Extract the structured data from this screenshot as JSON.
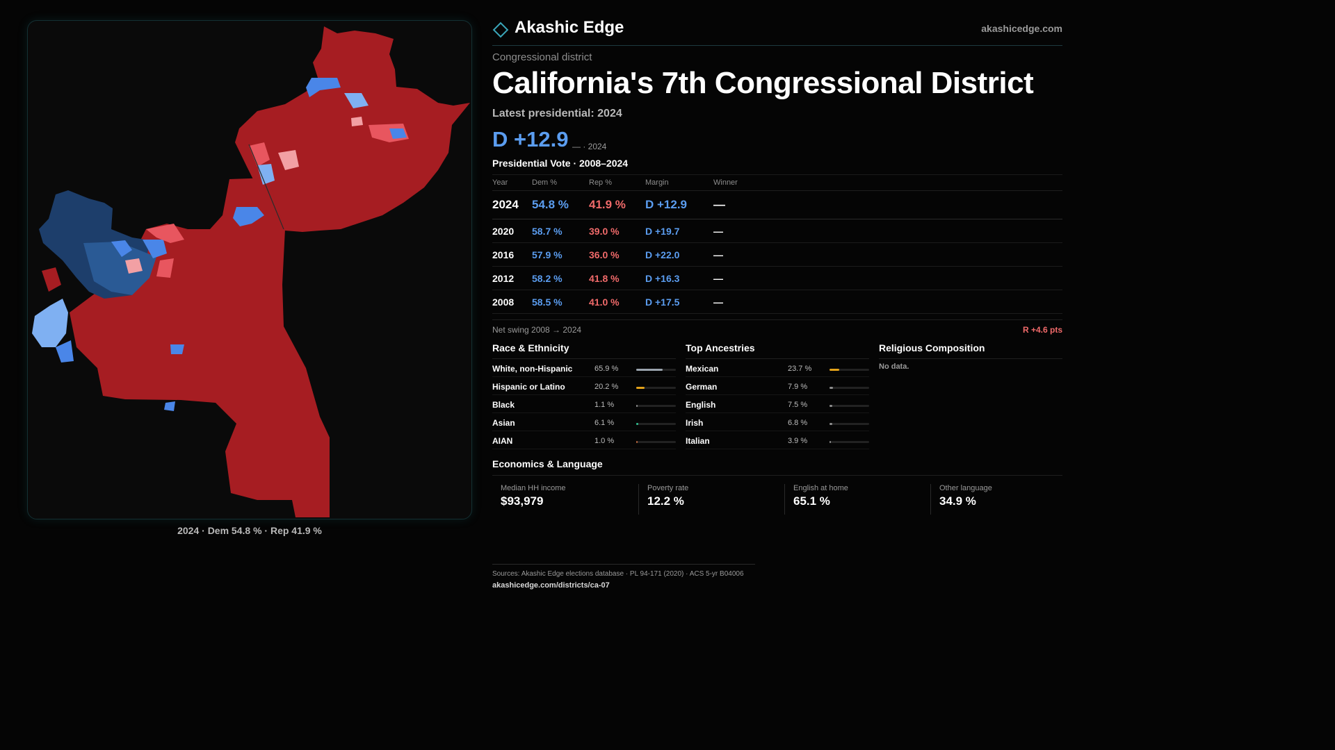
{
  "brand": {
    "name": "Akashic Edge",
    "url": "akashicedge.com",
    "logo_icon": "diamond-outline-icon",
    "accent": "#3aa6b9"
  },
  "header": {
    "kicker": "Congressional district",
    "title": "California's 7th Congressional District",
    "latest_label": "Latest presidential: 2024",
    "margin": "D +12.9",
    "margin_note": "— · 2024"
  },
  "presidential": {
    "title": "Presidential Vote · 2008–2024",
    "columns": {
      "year": "Year",
      "dem": "Dem %",
      "rep": "Rep %",
      "margin": "Margin",
      "winner": "Winner"
    },
    "rows": [
      {
        "year": "2024",
        "dem": "54.8 %",
        "rep": "41.9 %",
        "margin": "D +12.9",
        "winner": "—"
      },
      {
        "year": "2020",
        "dem": "58.7 %",
        "rep": "39.0 %",
        "margin": "D +19.7",
        "winner": "—"
      },
      {
        "year": "2016",
        "dem": "57.9 %",
        "rep": "36.0 %",
        "margin": "D +22.0",
        "winner": "—"
      },
      {
        "year": "2012",
        "dem": "58.2 %",
        "rep": "41.8 %",
        "margin": "D +16.3",
        "winner": "—"
      },
      {
        "year": "2008",
        "dem": "58.5 %",
        "rep": "41.0 %",
        "margin": "D +17.5",
        "winner": "—"
      }
    ],
    "swing_label": "Net swing 2008 → 2024",
    "swing_value": "R +4.6 pts"
  },
  "race": {
    "title": "Race & Ethnicity",
    "items": [
      {
        "label": "White, non-Hispanic",
        "value": "65.9 %",
        "share": 0.659,
        "color": "#9aa3ad"
      },
      {
        "label": "Hispanic or Latino",
        "value": "20.2 %",
        "share": 0.202,
        "color": "#e3a21a"
      },
      {
        "label": "Black",
        "value": "1.1 %",
        "share": 0.011,
        "color": "#8e8e8e"
      },
      {
        "label": "Asian",
        "value": "6.1 %",
        "share": 0.061,
        "color": "#2fbf8f"
      },
      {
        "label": "AIAN",
        "value": "1.0 %",
        "share": 0.01,
        "color": "#b8643a"
      }
    ]
  },
  "ancestry": {
    "title": "Top Ancestries",
    "items": [
      {
        "label": "Mexican",
        "value": "23.7 %",
        "share": 0.237,
        "color": "#e3a21a"
      },
      {
        "label": "German",
        "value": "7.9 %",
        "share": 0.079,
        "color": "#8e8e8e"
      },
      {
        "label": "English",
        "value": "7.5 %",
        "share": 0.075,
        "color": "#8e8e8e"
      },
      {
        "label": "Irish",
        "value": "6.8 %",
        "share": 0.068,
        "color": "#8e8e8e"
      },
      {
        "label": "Italian",
        "value": "3.9 %",
        "share": 0.039,
        "color": "#8e8e8e"
      }
    ]
  },
  "religion": {
    "title": "Religious Composition",
    "empty": "No data."
  },
  "economics": {
    "title": "Economics & Language",
    "cells": [
      {
        "label": "Median HH income",
        "value": "$93,979"
      },
      {
        "label": "Poverty rate",
        "value": "12.2 %"
      },
      {
        "label": "English at home",
        "value": "65.1 %"
      },
      {
        "label": "Other language",
        "value": "34.9 %"
      }
    ]
  },
  "map": {
    "caption": "2024 · Dem 54.8 % · Rep 41.9 %",
    "colors": {
      "rep": "#a61d22",
      "rep_light": "#e8565f",
      "rep_pale": "#f2a0a4",
      "dem": "#4a86e8",
      "dem_light": "#7fb0f2",
      "dem_dark": "#1d3e6b"
    }
  },
  "footer": {
    "sources": "Sources: Akashic Edge elections database · PL 94-171 (2020) · ACS 5-yr B04006",
    "url": "akashicedge.com/districts/ca-07"
  }
}
